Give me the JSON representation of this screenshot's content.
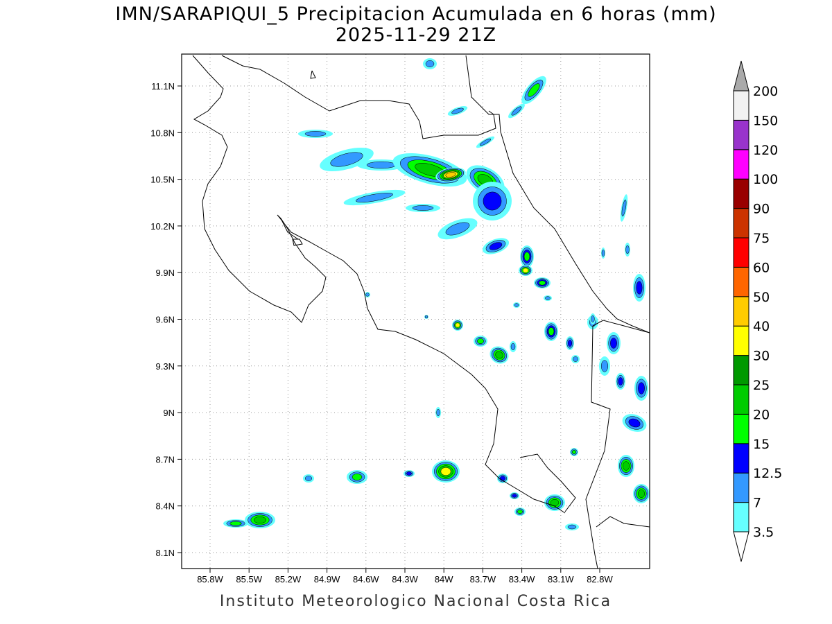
{
  "title": {
    "line1": "IMN/SARAPIQUI_5 Precipitacion Acumulada en 6 horas (mm)",
    "line2": "2025-11-29 21Z"
  },
  "footer": "Instituto Meteorologico Nacional Costa Rica",
  "axes": {
    "lon_ticks": [
      "85.8W",
      "85.5W",
      "85.2W",
      "84.9W",
      "84.6W",
      "84.3W",
      "84W",
      "83.7W",
      "83.4W",
      "83.1W",
      "82.8W"
    ],
    "lat_ticks": [
      "11.1N",
      "10.8N",
      "10.5N",
      "10.2N",
      "9.9N",
      "9.6N",
      "9.3N",
      "9N",
      "8.7N",
      "8.4N",
      "8.1N"
    ]
  },
  "colorbar": {
    "labels": [
      "3.5",
      "7",
      "12.5",
      "15",
      "20",
      "25",
      "30",
      "40",
      "50",
      "60",
      "75",
      "90",
      "100",
      "120",
      "150",
      "200"
    ],
    "colors": [
      "#66ffff",
      "#3399ff",
      "#0000ff",
      "#00ff00",
      "#00cc00",
      "#009900",
      "#ffff00",
      "#ffcc00",
      "#ff6600",
      "#ff0000",
      "#cc3300",
      "#990000",
      "#ff00ff",
      "#9933cc",
      "#f2f2f2"
    ],
    "over_color": "#aaaaaa",
    "under_color": "#ffffff"
  }
}
